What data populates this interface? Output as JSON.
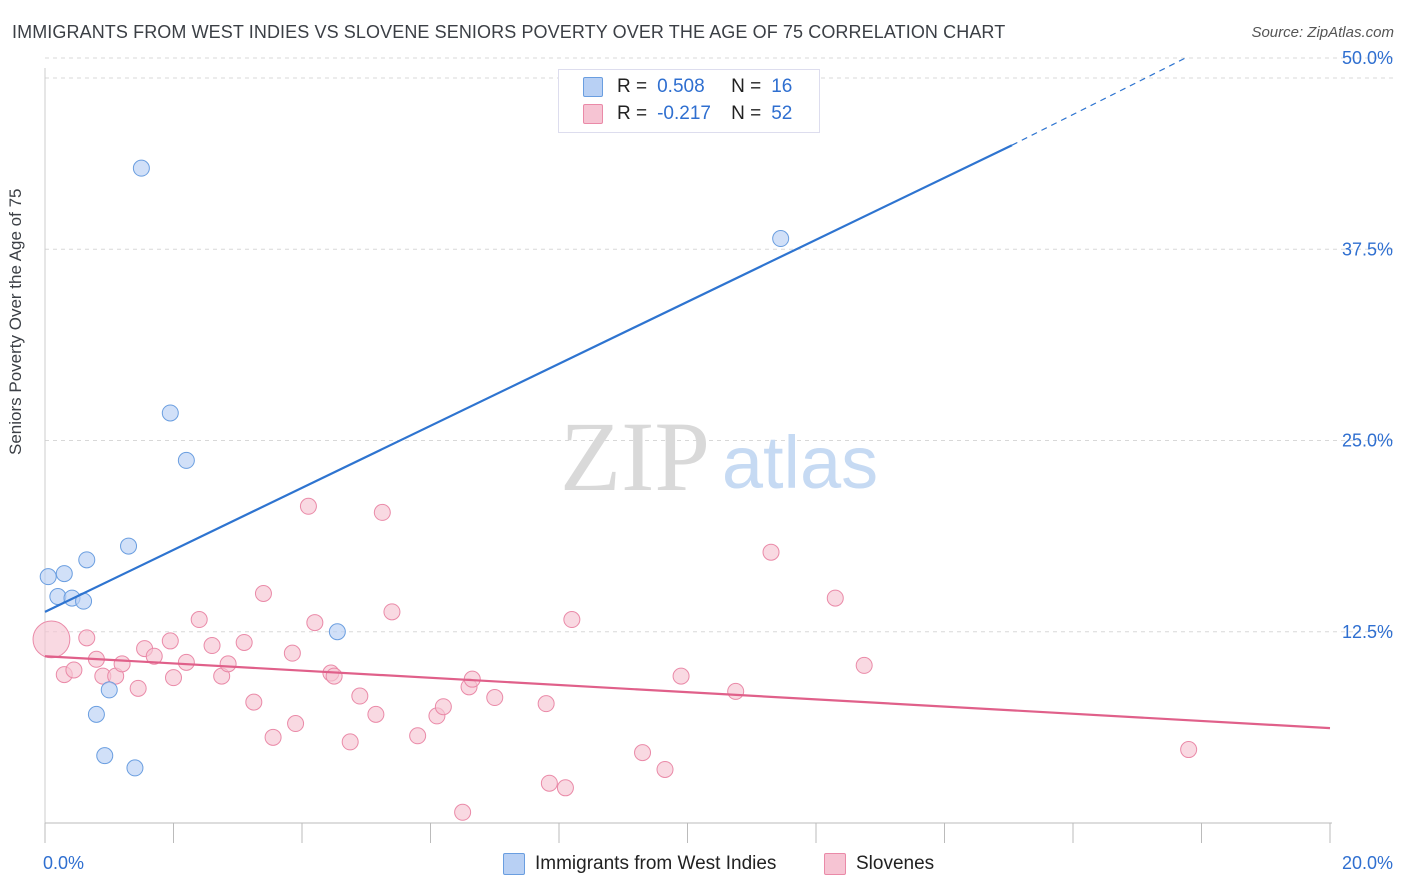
{
  "title": "IMMIGRANTS FROM WEST INDIES VS SLOVENE SENIORS POVERTY OVER THE AGE OF 75 CORRELATION CHART",
  "source": "Source: ZipAtlas.com",
  "watermark": {
    "zip": "ZIP",
    "atlas": "atlas"
  },
  "legend": {
    "r_label": "R =",
    "n_label": "N =",
    "rows": [
      {
        "r": "0.508",
        "n": "16"
      },
      {
        "r": "-0.217",
        "n": "52"
      }
    ]
  },
  "colors": {
    "blue_fill": "#b8d0f4",
    "blue_stroke": "#6a9ee0",
    "blue_line": "#2e74d0",
    "pink_fill": "#f6c4d3",
    "pink_stroke": "#ea8aa8",
    "pink_line": "#e0608a",
    "tick_label": "#2f6fd0",
    "grid": "#d8d8d8"
  },
  "chart_data": {
    "type": "scatter",
    "title": "IMMIGRANTS FROM WEST INDIES VS SLOVENE SENIORS POVERTY OVER THE AGE OF 75 CORRELATION CHART",
    "xlabel": "",
    "ylabel": "Seniors Poverty Over the Age of 75",
    "xlim": [
      0,
      20
    ],
    "ylim": [
      0,
      52
    ],
    "x_tick_labels": [
      "0.0%",
      "20.0%"
    ],
    "y_ticks": [
      12.5,
      25.0,
      37.5,
      50.0
    ],
    "y_tick_labels": [
      "12.5%",
      "25.0%",
      "37.5%",
      "50.0%"
    ],
    "grid": true,
    "legend_position": "bottom",
    "series": [
      {
        "name": "Immigrants from West Indies",
        "color": "#b8d0f4",
        "points": [
          [
            0.05,
            16.1,
            1
          ],
          [
            0.2,
            14.8,
            1
          ],
          [
            0.3,
            16.3,
            1
          ],
          [
            0.42,
            14.7,
            1
          ],
          [
            0.6,
            14.5,
            1
          ],
          [
            0.65,
            17.2,
            1
          ],
          [
            0.8,
            7.1,
            1
          ],
          [
            0.93,
            4.4,
            1
          ],
          [
            1.0,
            8.7,
            1
          ],
          [
            1.3,
            18.1,
            1
          ],
          [
            1.4,
            3.6,
            1
          ],
          [
            1.5,
            42.8,
            1
          ],
          [
            1.95,
            26.8,
            1
          ],
          [
            2.2,
            23.7,
            1
          ],
          [
            4.55,
            12.5,
            1
          ],
          [
            11.45,
            38.2,
            1
          ]
        ],
        "trend": {
          "x": [
            0,
            15.05
          ],
          "y": [
            13.8,
            44.3
          ],
          "dashed_to": [
            17.75,
            50.0
          ]
        }
      },
      {
        "name": "Slovenes",
        "color": "#f6c4d3",
        "points": [
          [
            0.1,
            12.0,
            2.3
          ],
          [
            0.3,
            9.7,
            1
          ],
          [
            0.45,
            10.0,
            1
          ],
          [
            0.65,
            12.1,
            1
          ],
          [
            0.8,
            10.7,
            1
          ],
          [
            0.9,
            9.6,
            1
          ],
          [
            1.1,
            9.6,
            1
          ],
          [
            1.2,
            10.4,
            1
          ],
          [
            1.45,
            8.8,
            1
          ],
          [
            1.55,
            11.4,
            1
          ],
          [
            1.7,
            10.9,
            1
          ],
          [
            1.95,
            11.9,
            1
          ],
          [
            2.0,
            9.5,
            1
          ],
          [
            2.2,
            10.5,
            1
          ],
          [
            2.4,
            13.3,
            1
          ],
          [
            2.6,
            11.6,
            1
          ],
          [
            2.75,
            9.6,
            1
          ],
          [
            2.85,
            10.4,
            1
          ],
          [
            3.1,
            11.8,
            1
          ],
          [
            3.25,
            7.9,
            1
          ],
          [
            3.4,
            15.0,
            1
          ],
          [
            3.55,
            5.6,
            1
          ],
          [
            3.85,
            11.1,
            1
          ],
          [
            3.9,
            6.5,
            1
          ],
          [
            4.1,
            20.7,
            1
          ],
          [
            4.2,
            13.1,
            1
          ],
          [
            4.45,
            9.8,
            1
          ],
          [
            4.5,
            9.6,
            1
          ],
          [
            4.75,
            5.3,
            1
          ],
          [
            4.9,
            8.3,
            1
          ],
          [
            5.15,
            7.1,
            1
          ],
          [
            5.25,
            20.3,
            1
          ],
          [
            5.4,
            13.8,
            1
          ],
          [
            5.8,
            5.7,
            1
          ],
          [
            6.1,
            7.0,
            1
          ],
          [
            6.2,
            7.6,
            1
          ],
          [
            6.5,
            0.7,
            1
          ],
          [
            6.6,
            8.9,
            1
          ],
          [
            6.65,
            9.4,
            1
          ],
          [
            7.0,
            8.2,
            1
          ],
          [
            7.8,
            7.8,
            1
          ],
          [
            7.85,
            2.6,
            1
          ],
          [
            8.1,
            2.3,
            1
          ],
          [
            8.2,
            13.3,
            1
          ],
          [
            9.3,
            4.6,
            1
          ],
          [
            9.65,
            3.5,
            1
          ],
          [
            9.9,
            9.6,
            1
          ],
          [
            10.75,
            8.6,
            1
          ],
          [
            11.3,
            17.7,
            1
          ],
          [
            12.3,
            14.7,
            1
          ],
          [
            12.75,
            10.3,
            1
          ],
          [
            17.8,
            4.8,
            1
          ]
        ],
        "trend": {
          "x": [
            0,
            20
          ],
          "y": [
            10.9,
            6.2
          ]
        }
      }
    ]
  }
}
